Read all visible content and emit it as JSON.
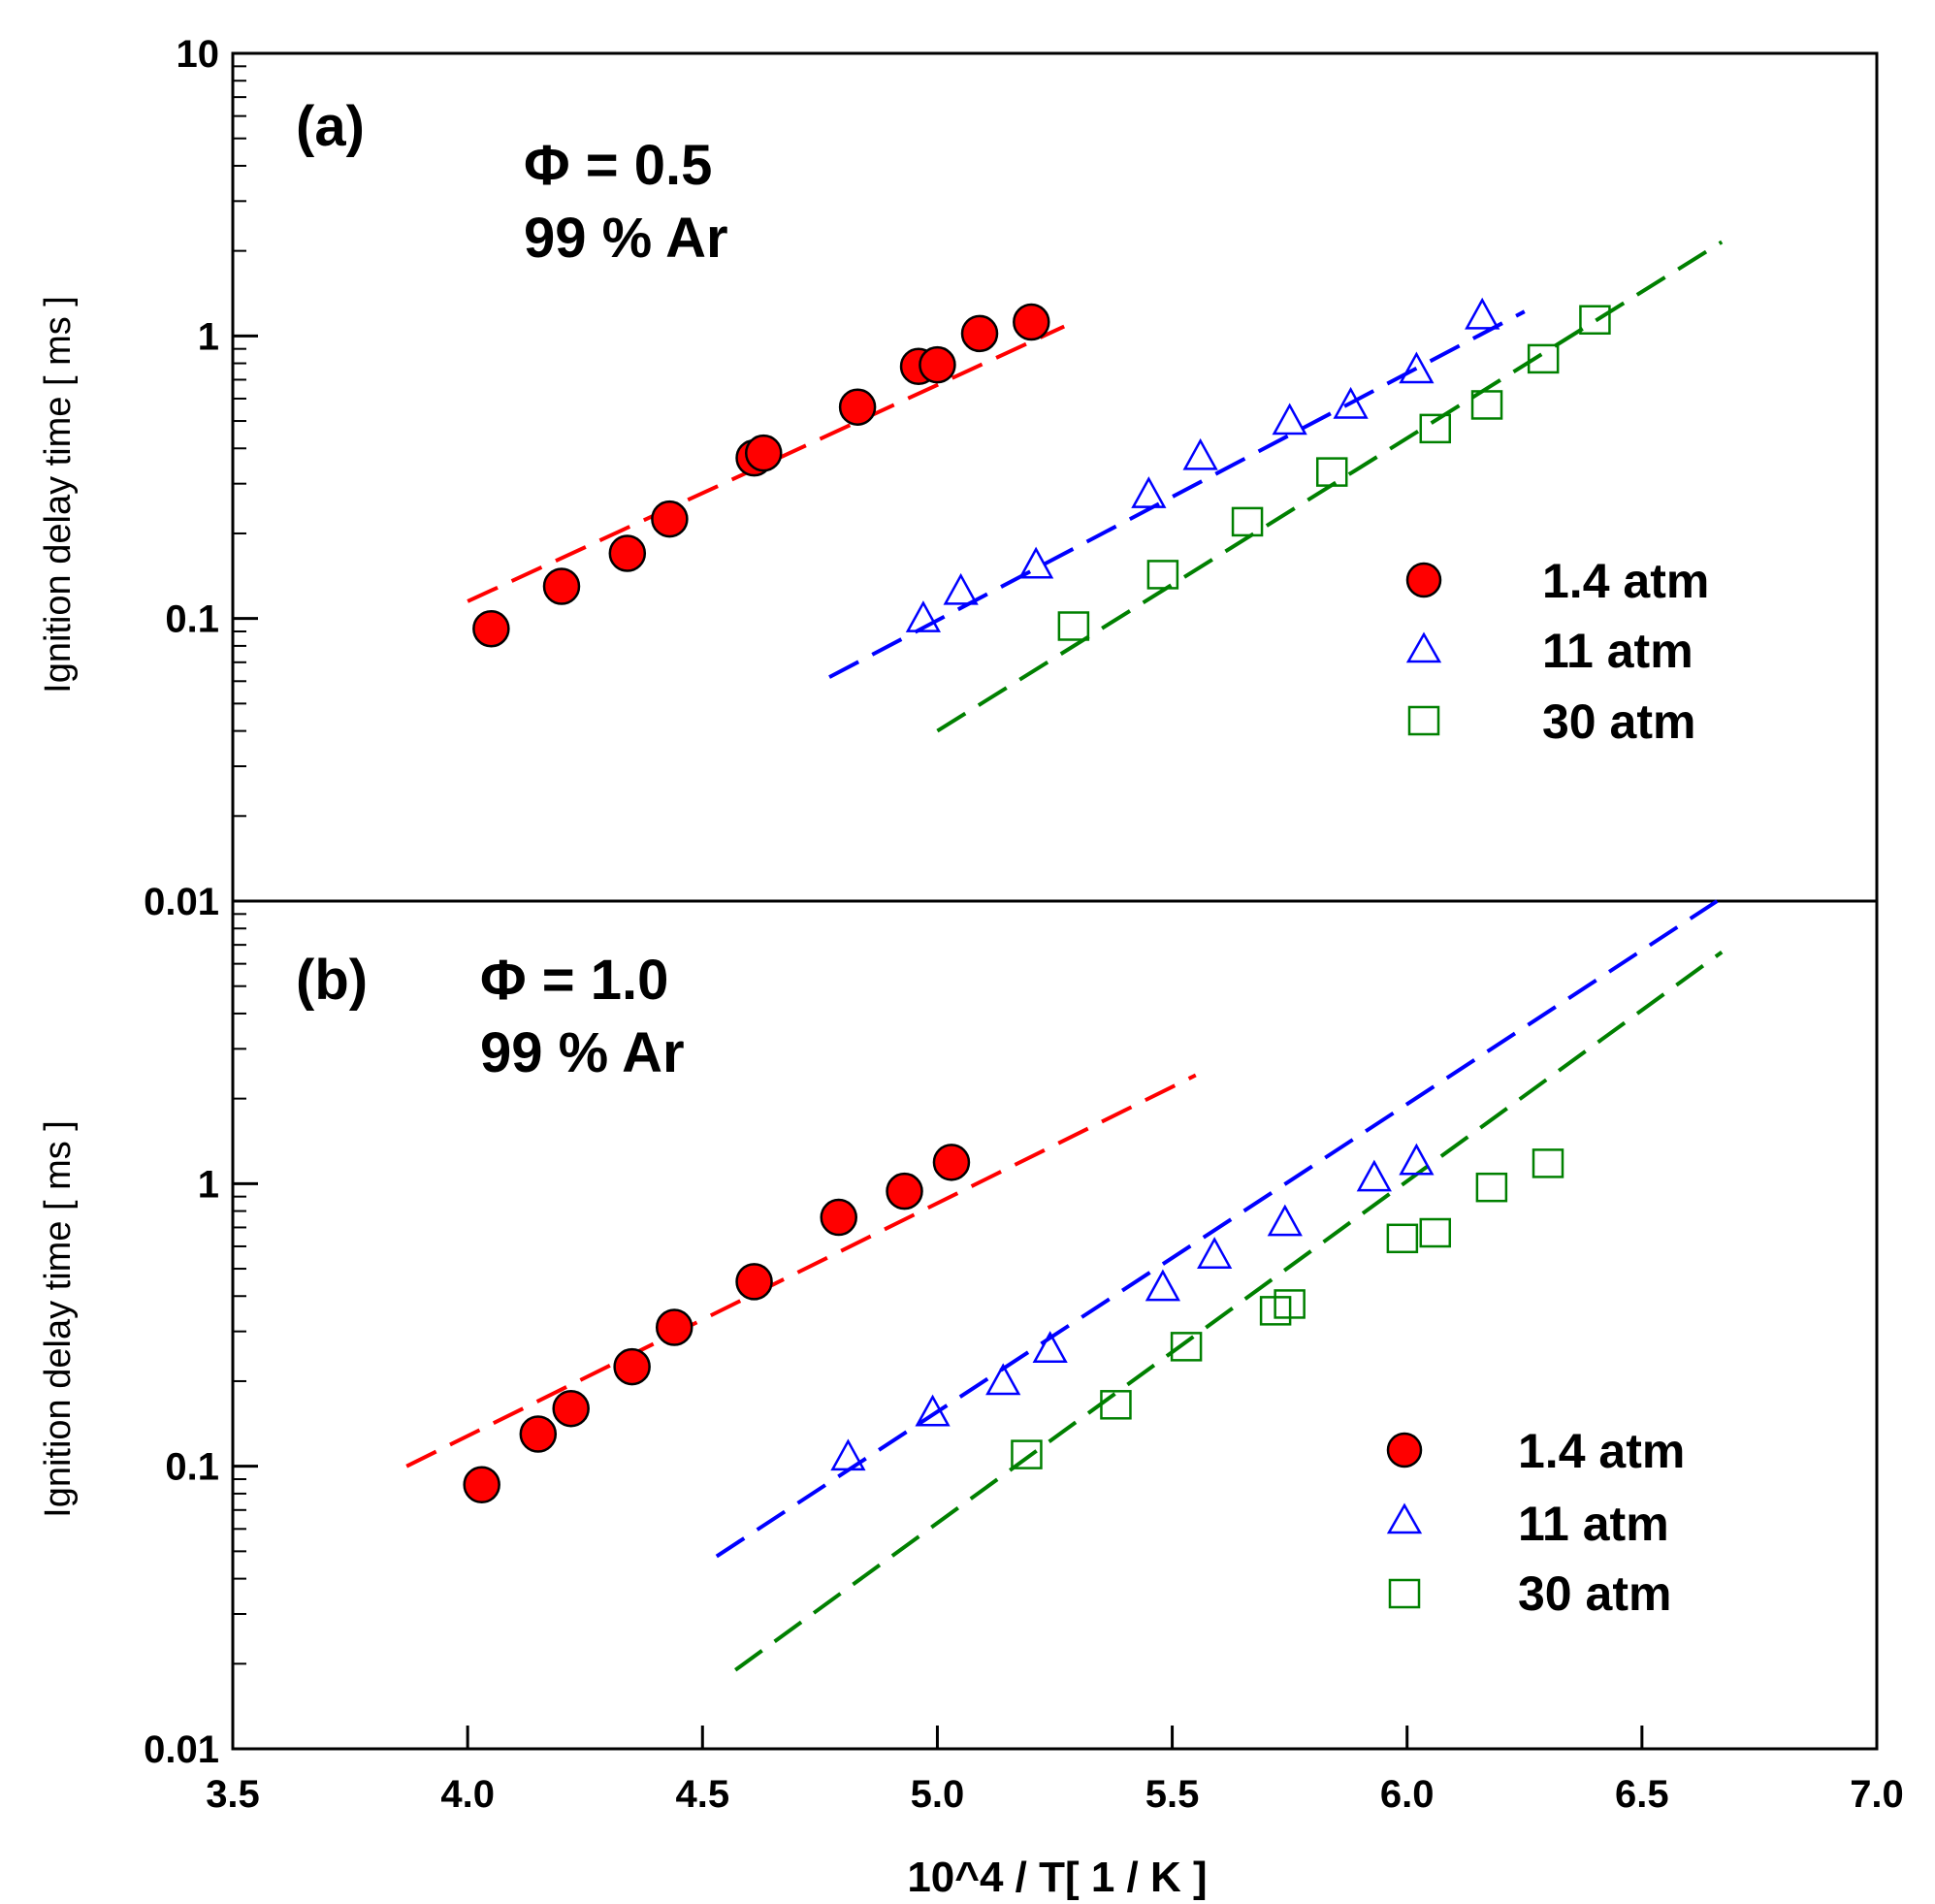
{
  "colors": {
    "s1": "#ff0000",
    "s2": "#0000ff",
    "s3": "#008000",
    "axis": "#000000"
  },
  "xaxis": {
    "label": "10^4 / T[ 1 / K ]",
    "range": [
      3.5,
      7.0
    ],
    "ticks": [
      3.5,
      4.0,
      4.5,
      5.0,
      5.5,
      6.0,
      6.5,
      7.0
    ],
    "tick_labels": [
      "3.5",
      "4.0",
      "4.5",
      "5.0",
      "5.5",
      "6.0",
      "6.5",
      "7.0"
    ]
  },
  "chart_data": [
    {
      "type": "scatter",
      "panel_label": "(a)",
      "annotation": [
        "Φ = 0.5",
        "99 % Ar"
      ],
      "xlabel": "10^4 / T[ 1 / K ]",
      "ylabel": "Ignition delay time [ ms ]",
      "yscale": "log",
      "ylim": [
        0.01,
        10
      ],
      "yticks": [
        0.01,
        0.1,
        1,
        10
      ],
      "ytick_labels": [
        "0.01",
        "0.1",
        "1",
        "10"
      ],
      "legend": {
        "position": "right",
        "entries": [
          "1.4 atm",
          "11 atm",
          "30 atm"
        ]
      },
      "series": [
        {
          "name": "1.4 atm",
          "marker": "circle",
          "points": [
            [
              4.05,
              0.092
            ],
            [
              4.2,
              0.13
            ],
            [
              4.34,
              0.17
            ],
            [
              4.43,
              0.225
            ],
            [
              4.61,
              0.37
            ],
            [
              4.63,
              0.385
            ],
            [
              4.83,
              0.56
            ],
            [
              4.96,
              0.78
            ],
            [
              5.0,
              0.79
            ],
            [
              5.09,
              1.02
            ],
            [
              5.2,
              1.12
            ]
          ],
          "fit": [
            [
              4.0,
              0.115
            ],
            [
              5.27,
              1.08
            ]
          ]
        },
        {
          "name": "11 atm",
          "marker": "triangle",
          "points": [
            [
              4.97,
              0.1
            ],
            [
              5.05,
              0.125
            ],
            [
              5.21,
              0.155
            ],
            [
              5.45,
              0.275
            ],
            [
              5.56,
              0.375
            ],
            [
              5.75,
              0.5
            ],
            [
              5.88,
              0.57
            ],
            [
              6.02,
              0.76
            ],
            [
              6.16,
              1.18
            ]
          ],
          "fit": [
            [
              4.77,
              0.062
            ],
            [
              6.25,
              1.22
            ]
          ]
        },
        {
          "name": "30 atm",
          "marker": "square",
          "points": [
            [
              5.29,
              0.094
            ],
            [
              5.48,
              0.143
            ],
            [
              5.66,
              0.22
            ],
            [
              5.84,
              0.33
            ],
            [
              6.06,
              0.47
            ],
            [
              6.17,
              0.57
            ],
            [
              6.29,
              0.83
            ],
            [
              6.4,
              1.14
            ]
          ],
          "fit": [
            [
              5.0,
              0.04
            ],
            [
              6.67,
              2.15
            ]
          ]
        }
      ]
    },
    {
      "type": "scatter",
      "panel_label": "(b)",
      "annotation": [
        "Φ = 1.0",
        "99 % Ar"
      ],
      "xlabel": "10^4 / T[ 1 / K ]",
      "ylabel": "Ignition delay time [ ms ]",
      "yscale": "log",
      "ylim": [
        0.01,
        10
      ],
      "yticks": [
        0.01,
        0.1,
        1
      ],
      "ytick_labels": [
        "0.01",
        "0.1",
        "1"
      ],
      "legend": {
        "position": "right",
        "entries": [
          "1.4 atm",
          "11 atm",
          "30 atm"
        ]
      },
      "series": [
        {
          "name": "1.4 atm",
          "marker": "circle",
          "points": [
            [
              4.03,
              0.086
            ],
            [
              4.15,
              0.13
            ],
            [
              4.22,
              0.16
            ],
            [
              4.35,
              0.225
            ],
            [
              4.44,
              0.31
            ],
            [
              4.61,
              0.45
            ],
            [
              4.79,
              0.76
            ],
            [
              4.93,
              0.94
            ],
            [
              5.03,
              1.19
            ]
          ],
          "fit": [
            [
              3.87,
              0.1
            ],
            [
              5.55,
              2.42
            ]
          ]
        },
        {
          "name": "11 atm",
          "marker": "triangle",
          "points": [
            [
              4.81,
              0.108
            ],
            [
              4.99,
              0.155
            ],
            [
              5.14,
              0.2
            ],
            [
              5.24,
              0.26
            ],
            [
              5.48,
              0.43
            ],
            [
              5.59,
              0.56
            ],
            [
              5.74,
              0.73
            ],
            [
              5.93,
              1.05
            ],
            [
              6.02,
              1.2
            ]
          ],
          "fit": [
            [
              4.53,
              0.048
            ],
            [
              6.66,
              10.0
            ]
          ]
        },
        {
          "name": "30 atm",
          "marker": "square",
          "points": [
            [
              5.19,
              0.11
            ],
            [
              5.38,
              0.165
            ],
            [
              5.53,
              0.265
            ],
            [
              5.72,
              0.355
            ],
            [
              5.75,
              0.375
            ],
            [
              5.99,
              0.64
            ],
            [
              6.06,
              0.67
            ],
            [
              6.18,
              0.97
            ],
            [
              6.3,
              1.18
            ]
          ],
          "fit": [
            [
              4.57,
              0.019
            ],
            [
              6.67,
              6.6
            ]
          ]
        }
      ]
    }
  ]
}
